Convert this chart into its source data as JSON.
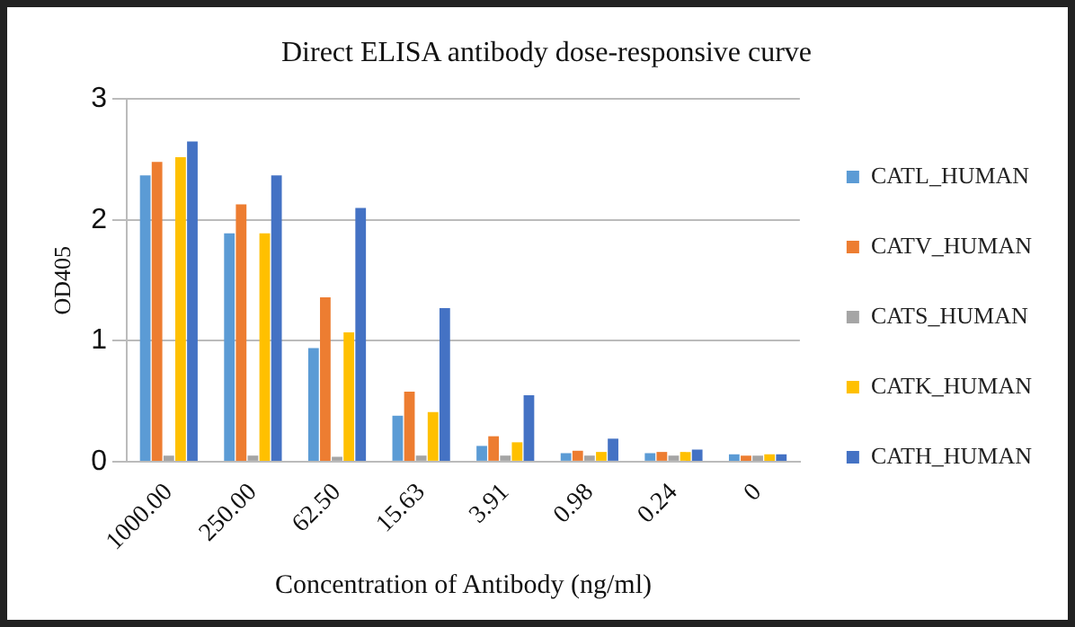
{
  "chart_data": {
    "type": "bar",
    "title": "Direct ELISA antibody dose-responsive curve",
    "xlabel": "Concentration of Antibody (ng/ml)",
    "ylabel": "OD405",
    "categories": [
      "1000.00",
      "250.00",
      "62.50",
      "15.63",
      "3.91",
      "0.98",
      "0.24",
      "0"
    ],
    "series": [
      {
        "name": "CATL_HUMAN",
        "color": "#5b9bd5",
        "values": [
          2.37,
          1.89,
          0.94,
          0.38,
          0.13,
          0.07,
          0.07,
          0.06
        ]
      },
      {
        "name": "CATV_HUMAN",
        "color": "#ed7d31",
        "values": [
          2.48,
          2.13,
          1.36,
          0.58,
          0.21,
          0.09,
          0.08,
          0.05
        ]
      },
      {
        "name": "CATS_HUMAN",
        "color": "#a5a5a5",
        "values": [
          0.05,
          0.05,
          0.04,
          0.05,
          0.05,
          0.05,
          0.05,
          0.05
        ]
      },
      {
        "name": "CATK_HUMAN",
        "color": "#ffc000",
        "values": [
          2.52,
          1.89,
          1.07,
          0.41,
          0.16,
          0.08,
          0.08,
          0.06
        ]
      },
      {
        "name": "CATH_HUMAN",
        "color": "#4472c4",
        "values": [
          2.65,
          2.37,
          2.1,
          1.27,
          0.55,
          0.19,
          0.1,
          0.06
        ]
      }
    ],
    "ylim": [
      0,
      3
    ],
    "yticks": [
      0,
      1,
      2,
      3
    ],
    "grid": "y",
    "legend": "right"
  }
}
